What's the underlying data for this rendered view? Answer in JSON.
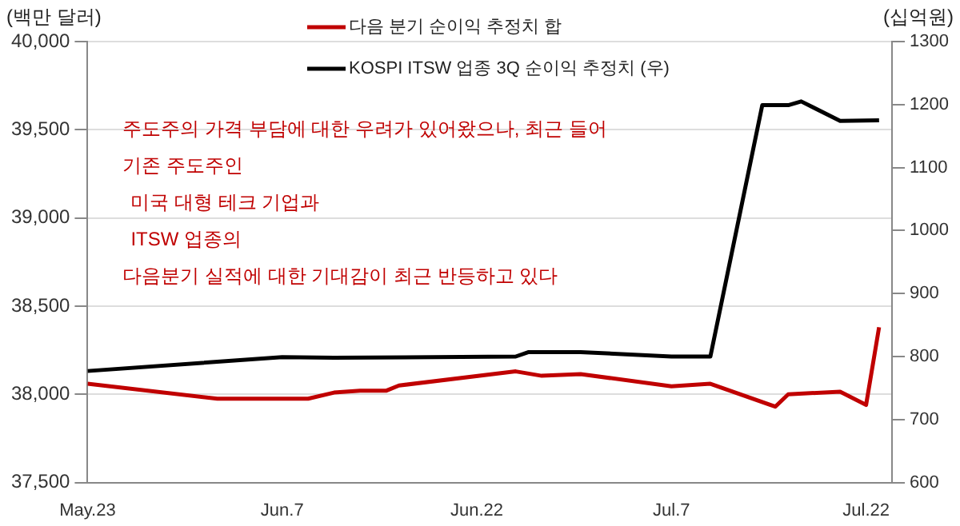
{
  "chart_data": {
    "type": "line",
    "ylabel": "(백만 달러)",
    "y2label": "(십억원)",
    "annotations": [
      "주도주의 가격 부담에 대한 우려가 있어왔으나, 최근 들어",
      "기존 주도주인",
      "미국 대형 테크 기업과",
      "ITSW 업종의",
      "다음분기 실적에 대한 기대감이 최근 반등하고 있다"
    ],
    "series": [
      {
        "name": "다음 분기 순이익 추정치 합",
        "color": "#c00000",
        "x": [
          "--05-23",
          "--06-02",
          "--06-09",
          "--06-11",
          "--06-13",
          "--06-15",
          "--06-16",
          "--06-25",
          "--06-27",
          "--06-30",
          "--07-07",
          "--07-10",
          "--07-15",
          "--07-16",
          "--07-20",
          "--07-22",
          "--07-23"
        ],
        "values": [
          38060,
          37975,
          37975,
          38010,
          38020,
          38020,
          38050,
          38130,
          38105,
          38115,
          38045,
          38060,
          37930,
          38000,
          38015,
          37940,
          38380
        ]
      },
      {
        "name": "KOSPI ITSW 업종 3Q 순이익 추정치 (우)",
        "color": "#000000",
        "axis": "y2",
        "x": [
          "--05-23",
          "--06-07",
          "--06-11",
          "--06-25",
          "--06-26",
          "--06-30",
          "--07-07",
          "--07-10",
          "--07-14",
          "--07-16",
          "--07-17",
          "--07-20",
          "--07-23"
        ],
        "values": [
          777,
          799,
          798,
          800,
          807,
          807,
          800,
          800,
          1199,
          1199,
          1205,
          1174,
          1175
        ]
      }
    ],
    "xlim": [
      "--05-23",
      "--07-24"
    ],
    "xticks": [
      {
        "value": "--05-23",
        "label": "May.23"
      },
      {
        "value": "--06-07",
        "label": "Jun.7"
      },
      {
        "value": "--06-22",
        "label": "Jun.22"
      },
      {
        "value": "--07-07",
        "label": "Jul.7"
      },
      {
        "value": "--07-22",
        "label": "Jul.22"
      }
    ],
    "ylim": [
      37500,
      40000
    ],
    "yticks": [
      {
        "value": 37500,
        "label": "37,500"
      },
      {
        "value": 38000,
        "label": "38,000"
      },
      {
        "value": 38500,
        "label": "38,500"
      },
      {
        "value": 39000,
        "label": "39,000"
      },
      {
        "value": 39500,
        "label": "39,500"
      },
      {
        "value": 40000,
        "label": "40,000"
      }
    ],
    "y2lim": [
      600,
      1300
    ],
    "y2ticks": [
      600,
      700,
      800,
      900,
      1000,
      1100,
      1200,
      1300
    ],
    "grid": "y",
    "legend": "top",
    "marker": "none",
    "line_style": "solid"
  }
}
